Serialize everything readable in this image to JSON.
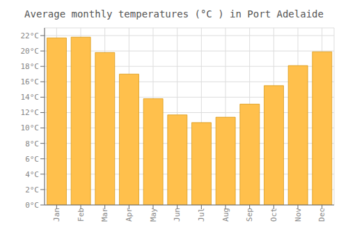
{
  "chart_data": {
    "type": "bar",
    "title": "Average monthly temperatures (°C ) in Port Adelaide",
    "categories": [
      "Jan",
      "Feb",
      "Mar",
      "Apr",
      "May",
      "Jun",
      "Jul",
      "Aug",
      "Sep",
      "Oct",
      "Nov",
      "Dec"
    ],
    "values": [
      21.7,
      21.8,
      19.8,
      17.0,
      13.8,
      11.7,
      10.7,
      11.4,
      13.1,
      15.5,
      18.1,
      19.9
    ],
    "color": "#FFC04C",
    "ylim": [
      0,
      23
    ],
    "yticks": [
      {
        "value": 0,
        "label": "0°C"
      },
      {
        "value": 2,
        "label": "2°C"
      },
      {
        "value": 4,
        "label": "4°C"
      },
      {
        "value": 6,
        "label": "6°C"
      },
      {
        "value": 8,
        "label": "8°C"
      },
      {
        "value": 10,
        "label": "10°C"
      },
      {
        "value": 12,
        "label": "12°C"
      },
      {
        "value": 14,
        "label": "14°C"
      },
      {
        "value": 16,
        "label": "16°C"
      },
      {
        "value": 18,
        "label": "18°C"
      },
      {
        "value": 20,
        "label": "20°C"
      },
      {
        "value": 22,
        "label": "22°C"
      }
    ],
    "grid": true
  }
}
